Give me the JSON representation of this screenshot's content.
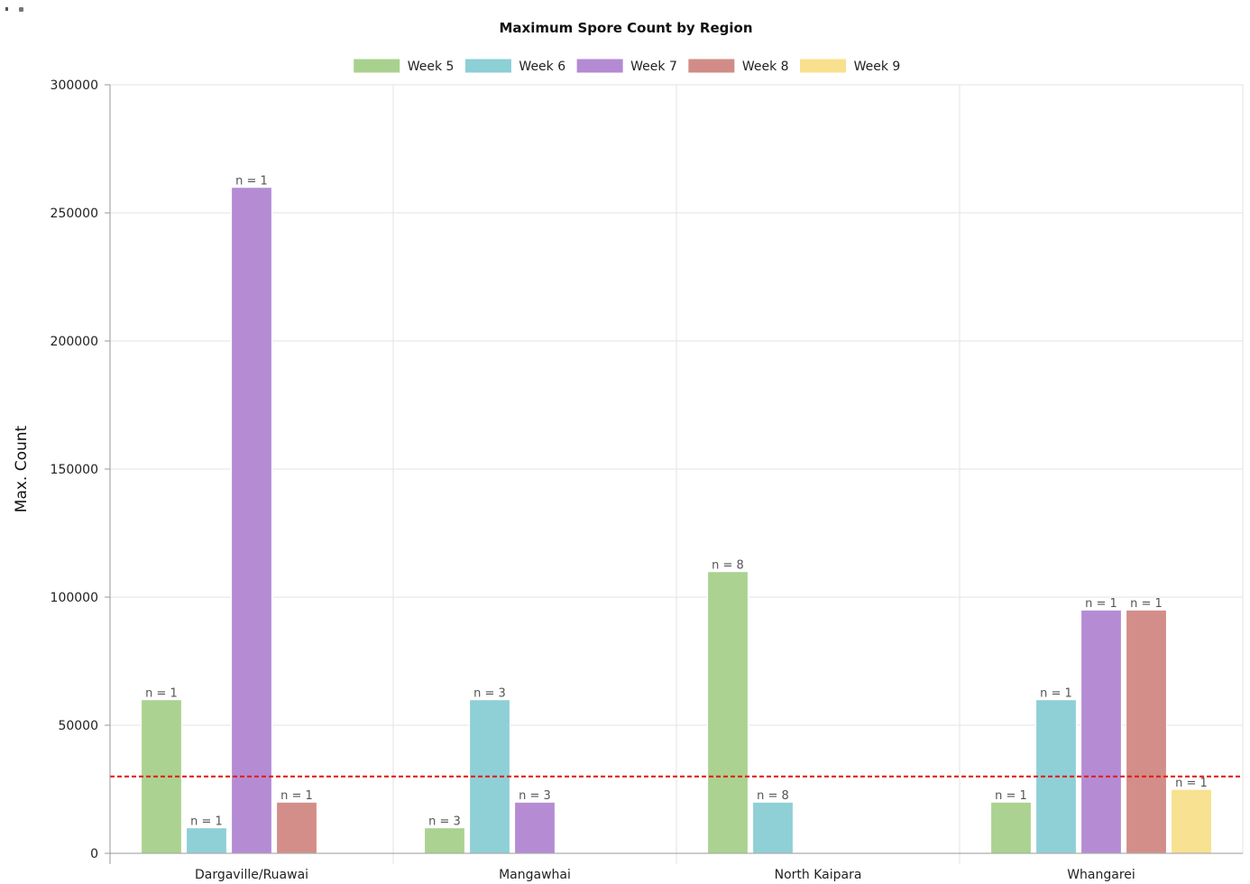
{
  "chart_data": {
    "type": "bar",
    "title": "Maximum Spore Count by Region",
    "xlabel": "",
    "ylabel": "Max. Count",
    "ylim": [
      0,
      300000
    ],
    "yticks": [
      "0",
      "50000",
      "100000",
      "150000",
      "200000",
      "250000",
      "300000"
    ],
    "grid": true,
    "legend_position": "top-center",
    "categories": [
      "Dargaville/Ruawai",
      "Mangawhai",
      "North Kaipara",
      "Whangarei"
    ],
    "series": [
      {
        "name": "Week 5",
        "color": "#a9d18e",
        "values": [
          60000,
          10000,
          110000,
          20000
        ],
        "labels": [
          "n = 1",
          "n = 3",
          "n = 8",
          "n = 1"
        ]
      },
      {
        "name": "Week 6",
        "color": "#8ccfd5",
        "values": [
          10000,
          60000,
          20000,
          60000
        ],
        "labels": [
          "n = 1",
          "n = 3",
          "n = 8",
          "n = 1"
        ]
      },
      {
        "name": "Week 7",
        "color": "#b48ad3",
        "values": [
          260000,
          20000,
          null,
          95000
        ],
        "labels": [
          "n = 1",
          "n = 3",
          "",
          "n = 1"
        ]
      },
      {
        "name": "Week 8",
        "color": "#d28c87",
        "values": [
          20000,
          null,
          null,
          95000
        ],
        "labels": [
          "n = 1",
          "",
          "",
          "n = 1"
        ]
      },
      {
        "name": "Week 9",
        "color": "#f8e08e",
        "values": [
          null,
          null,
          null,
          25000
        ],
        "labels": [
          "",
          "",
          "",
          "n = 1"
        ]
      }
    ],
    "threshold": {
      "value": 30000,
      "color": "#e0201c",
      "style": "dashed"
    }
  }
}
